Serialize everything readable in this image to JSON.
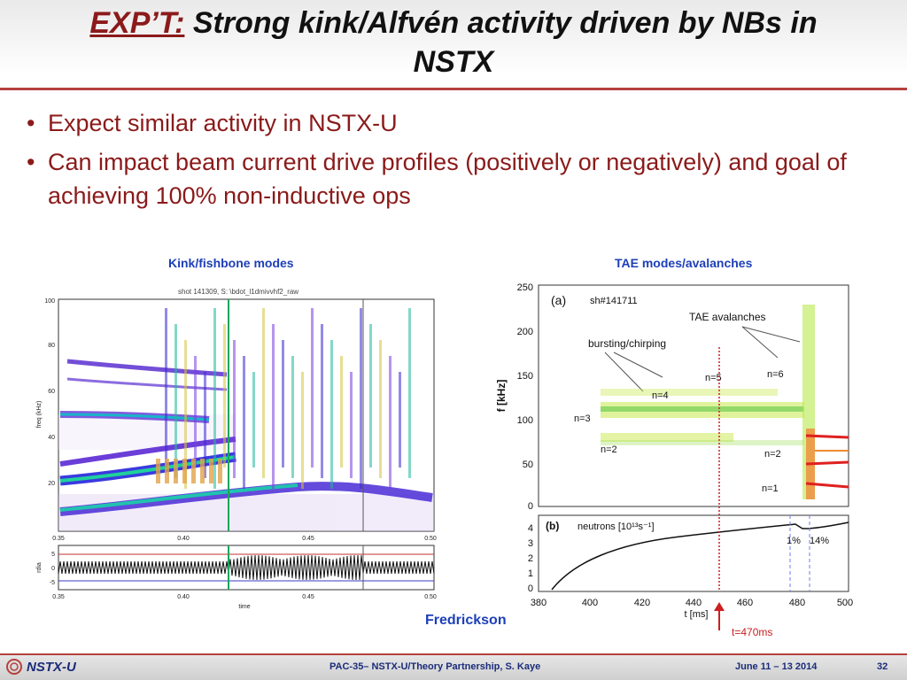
{
  "slide": {
    "title_prefix": "EXP’T:",
    "title_line1": "Strong kink/Alfvén activity driven by NBs in",
    "title_line2": "NSTX",
    "bullets": [
      "Expect similar activity in NSTX-U",
      "Can impact beam current drive profiles (positively or negatively) and goal of achieving 100% non-inductive ops"
    ],
    "left_caption": "Kink/fishbone modes",
    "right_caption": "TAE modes/avalanches",
    "author": "Fredrickson",
    "marker_label": "t=470ms"
  },
  "footer": {
    "logo_text": "NSTX-U",
    "center": "PAC-35– NSTX-U/Theory Partnership, S. Kaye",
    "date": "June 11 – 13 2014",
    "page": "32"
  },
  "left_plot": {
    "header": "shot 141309, S: \\bdot_l1dmivvhf2_raw",
    "ylabel": "freq (kHz)",
    "yticks": [
      "100",
      "80",
      "60",
      "40",
      "20"
    ],
    "xticks": [
      "0.35",
      "0.40",
      "0.45",
      "0.50"
    ],
    "lower_ylabel": "rdia",
    "lower_yticks": [
      "5",
      "0",
      "-5"
    ],
    "lower_xticks": [
      "0.35",
      "0.40",
      "0.45",
      "0.50"
    ],
    "xlabel": "time"
  },
  "right_plot": {
    "panel_a": "(a)",
    "shot": "sh#141711",
    "tae_label": "TAE avalanches",
    "burst_label": "bursting/chirping",
    "ylabel": "f [kHz]",
    "yticks": [
      "250",
      "200",
      "150",
      "100",
      "50",
      "0"
    ],
    "mode_labels": [
      "n=3",
      "n=2",
      "n=4",
      "n=5",
      "n=6",
      "n=2",
      "n=1"
    ],
    "panel_b": "(b)",
    "neutrons_label": "neutrons [10¹³s⁻¹]",
    "pct_1": "1%",
    "pct_2": "14%",
    "lower_yticks": [
      "4",
      "3",
      "2",
      "1",
      "0"
    ],
    "xticks": [
      "380",
      "400",
      "420",
      "440",
      "460",
      "480",
      "500"
    ],
    "xlabel": "t [ms]"
  },
  "colors": {
    "accent": "#b5413e",
    "bullet_text": "#8b1a1a",
    "caption_blue": "#1d3fb8",
    "marker_red": "#cc1f1f"
  }
}
